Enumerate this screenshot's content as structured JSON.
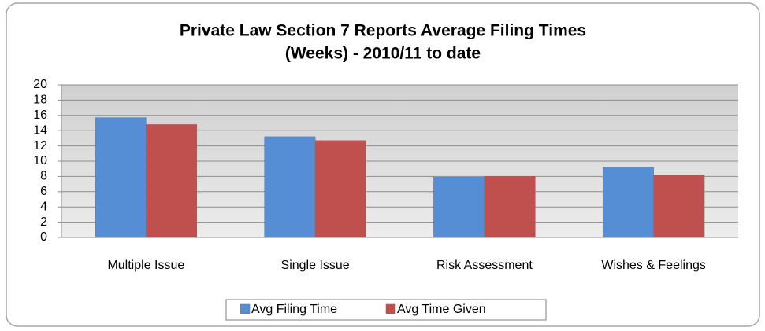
{
  "chart_data": {
    "type": "bar",
    "title": [
      "Private Law Section 7 Reports Average Filing Times",
      "(Weeks) - 2010/11 to date"
    ],
    "categories": [
      "Multiple Issue",
      "Single Issue",
      "Risk Assessment",
      "Wishes & Feelings"
    ],
    "series": [
      {
        "name": "Avg Filing Time",
        "color": "#558ed5",
        "values": [
          15.7,
          13.2,
          7.9,
          9.2
        ]
      },
      {
        "name": "Avg Time Given",
        "color": "#c0504d",
        "values": [
          14.8,
          12.7,
          8.0,
          8.2
        ]
      }
    ],
    "ylim": [
      0,
      20
    ],
    "yticks": [
      0,
      2,
      4,
      6,
      8,
      10,
      12,
      14,
      16,
      18,
      20
    ],
    "grid": true,
    "legend": "bottom"
  }
}
